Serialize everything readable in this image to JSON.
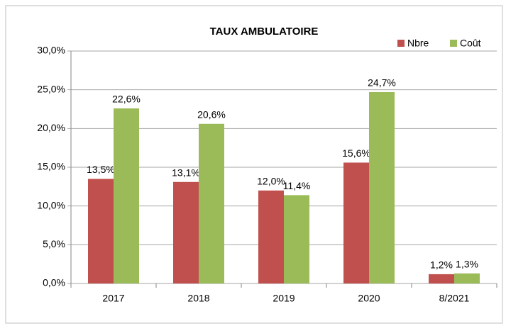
{
  "chart_data": {
    "type": "bar",
    "title": "TAUX   AMBULATOIRE",
    "categories": [
      "2017",
      "2018",
      "2019",
      "2020",
      "8/2021"
    ],
    "series": [
      {
        "name": "Nbre",
        "color": "#c0504d",
        "values": [
          13.5,
          13.1,
          12.0,
          15.6,
          1.2
        ],
        "value_labels": [
          "13,5%",
          "13,1%",
          "12,0%",
          "15,6%",
          "1,2%"
        ]
      },
      {
        "name": "Coût",
        "color": "#9bbb59",
        "values": [
          22.6,
          20.6,
          11.4,
          24.7,
          1.3
        ],
        "value_labels": [
          "22,6%",
          "20,6%",
          "11,4%",
          "24,7%",
          "1,3%"
        ]
      }
    ],
    "ylim": [
      0,
      30
    ],
    "yticks": [
      {
        "value": 0,
        "label": "0,0%"
      },
      {
        "value": 5,
        "label": "5,0%"
      },
      {
        "value": 10,
        "label": "10,0%"
      },
      {
        "value": 15,
        "label": "15,0%"
      },
      {
        "value": 20,
        "label": "20,0%"
      },
      {
        "value": 25,
        "label": "25,0%"
      },
      {
        "value": 30,
        "label": "30,0%"
      }
    ],
    "grid": true,
    "legend": "top-right"
  }
}
